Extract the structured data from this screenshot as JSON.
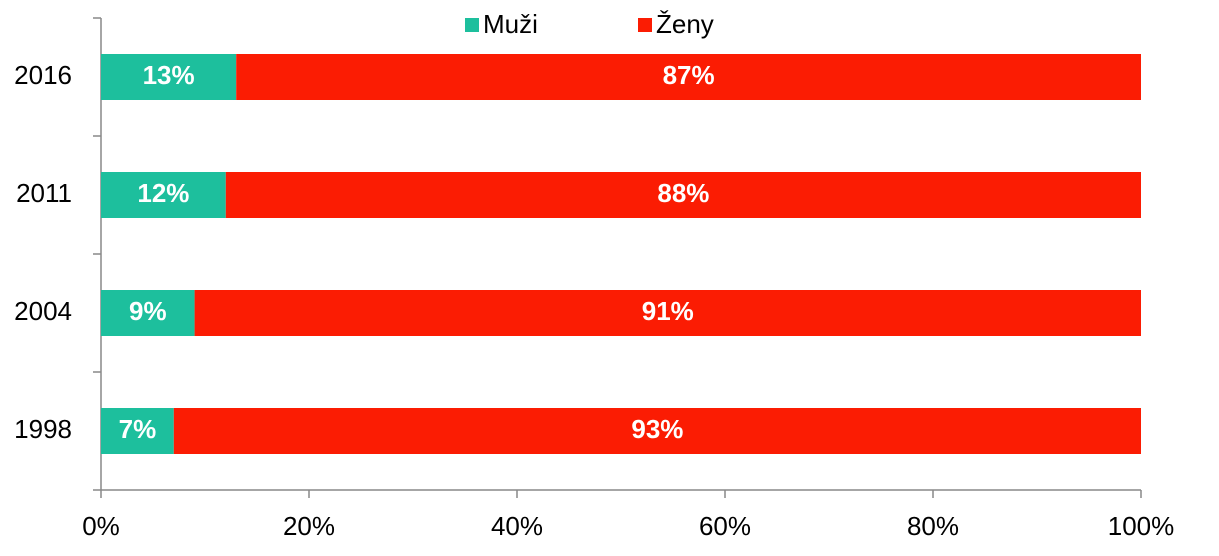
{
  "chart_data": {
    "type": "bar",
    "orientation": "horizontal",
    "stacked": true,
    "categories": [
      "2016",
      "2011",
      "2004",
      "1998"
    ],
    "series": [
      {
        "name": "Muži",
        "color": "#1dbf9d",
        "values": [
          13,
          12,
          9,
          7
        ],
        "value_labels": [
          "13%",
          "12%",
          "9%",
          "7%"
        ]
      },
      {
        "name": "Ženy",
        "color": "#fb1c03",
        "values": [
          87,
          88,
          91,
          93
        ],
        "value_labels": [
          "87%",
          "88%",
          "91%",
          "93%"
        ]
      }
    ],
    "xlim": [
      0,
      100
    ],
    "xticks": [
      {
        "value": 0,
        "label": "0%"
      },
      {
        "value": 20,
        "label": "20%"
      },
      {
        "value": 40,
        "label": "40%"
      },
      {
        "value": 60,
        "label": "60%"
      },
      {
        "value": 80,
        "label": "80%"
      },
      {
        "value": 100,
        "label": "100%"
      }
    ],
    "legend": "top"
  }
}
